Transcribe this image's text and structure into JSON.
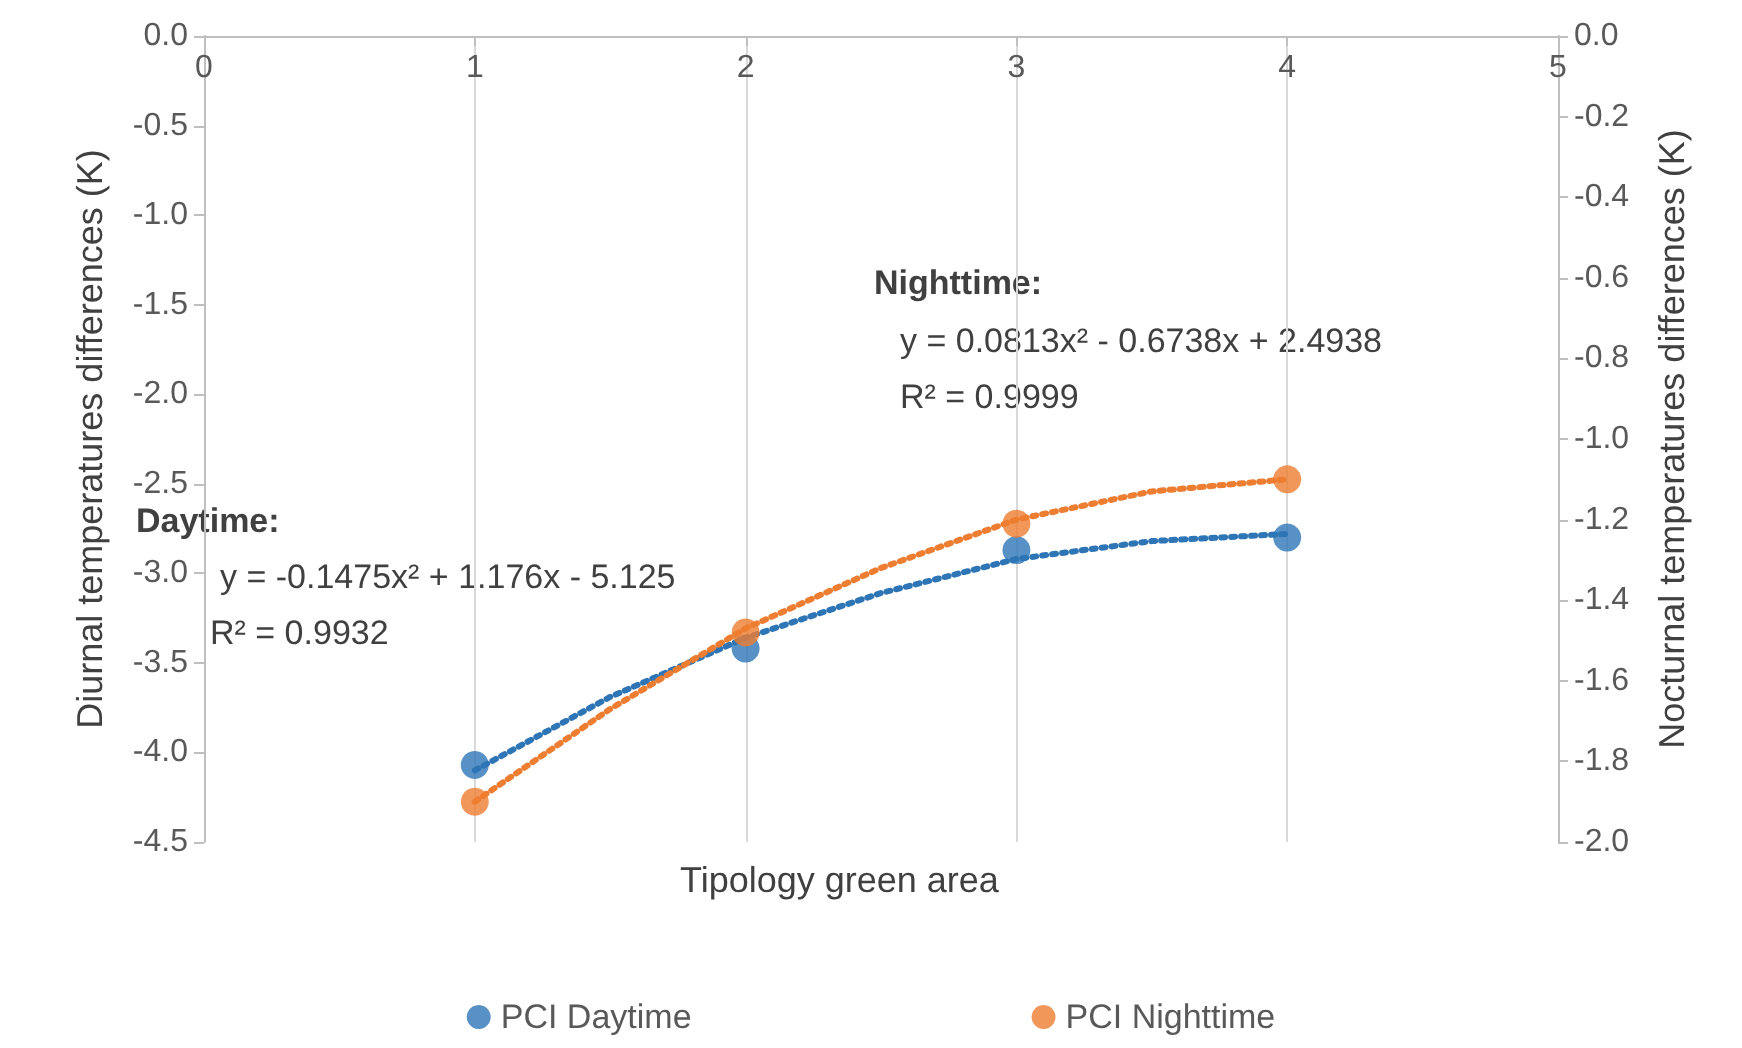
{
  "chart_data": {
    "type": "scatter",
    "xlabel": "Tipology green area",
    "ylabel": "Diurnal temperatures differences (K)",
    "y2label": "Nocturnal temperatures differences (K)",
    "xlim": [
      0,
      5
    ],
    "xticks": [
      0,
      1,
      2,
      3,
      4,
      5
    ],
    "ylim": [
      -4.5,
      0
    ],
    "yticks": [
      {
        "value": -4.5,
        "label": "-4.5"
      },
      {
        "value": -4,
        "label": "-4.0"
      },
      {
        "value": -3.5,
        "label": "-3.5"
      },
      {
        "value": -3,
        "label": "-3.0"
      },
      {
        "value": -2.5,
        "label": "-2.5"
      },
      {
        "value": -2,
        "label": "-2.0"
      },
      {
        "value": -1.5,
        "label": "-1.5"
      },
      {
        "value": -1,
        "label": "-1.0"
      },
      {
        "value": -0.5,
        "label": "-0.5"
      },
      {
        "value": 0,
        "label": "0.0"
      }
    ],
    "y2lim": [
      -2,
      0
    ],
    "y2ticks": [
      {
        "value": -2,
        "label": "-2.0"
      },
      {
        "value": -1.8,
        "label": "-1.8"
      },
      {
        "value": -1.6,
        "label": "-1.6"
      },
      {
        "value": -1.4,
        "label": "-1.4"
      },
      {
        "value": -1.2,
        "label": "-1.2"
      },
      {
        "value": -1,
        "label": "-1.0"
      },
      {
        "value": -0.8,
        "label": "-0.8"
      },
      {
        "value": -0.6,
        "label": "-0.6"
      },
      {
        "value": -0.4,
        "label": "-0.4"
      },
      {
        "value": -0.2,
        "label": "-0.2"
      },
      {
        "value": 0,
        "label": "0.0"
      }
    ],
    "grid": "x",
    "legend": "bottom",
    "marker": "circle",
    "series": [
      {
        "type": "line",
        "line_style": "dotted",
        "marker": "none",
        "color": "#2e75b6",
        "x": [
          1,
          1.5,
          2,
          2.5,
          3,
          3.5,
          4
        ],
        "values": [
          -4.1,
          -3.69,
          -3.36,
          -3.11,
          -2.92,
          -2.82,
          -2.78
        ]
      },
      {
        "type": "line",
        "line_style": "dotted",
        "marker": "none",
        "color": "#ed7d31",
        "axis": "y2",
        "x": [
          1,
          1.5,
          2,
          2.5,
          3,
          3.5,
          4
        ],
        "values": [
          -1.9,
          -1.67,
          -1.47,
          -1.32,
          -1.2,
          -1.13,
          -1.1
        ]
      },
      {
        "name": "PCI Daytime",
        "color": "#2e75b6",
        "x": [
          1,
          2,
          3,
          4
        ],
        "values": [
          -4.07,
          -3.42,
          -2.87,
          -2.8
        ]
      },
      {
        "name": "PCI Nighttime",
        "color": "#ed7d31",
        "axis": "y2",
        "x": [
          1,
          2,
          3,
          4
        ],
        "values": [
          -1.9,
          -1.48,
          -1.21,
          -1.1
        ]
      }
    ],
    "annotations": [
      "Daytime:",
      "y = -0.1475x² + 1.176x - 5.125",
      "R² = 0.9932",
      "Nighttime:",
      "y = 0.0813x² - 0.6738x + 2.4938",
      "R² = 0.9999"
    ]
  }
}
